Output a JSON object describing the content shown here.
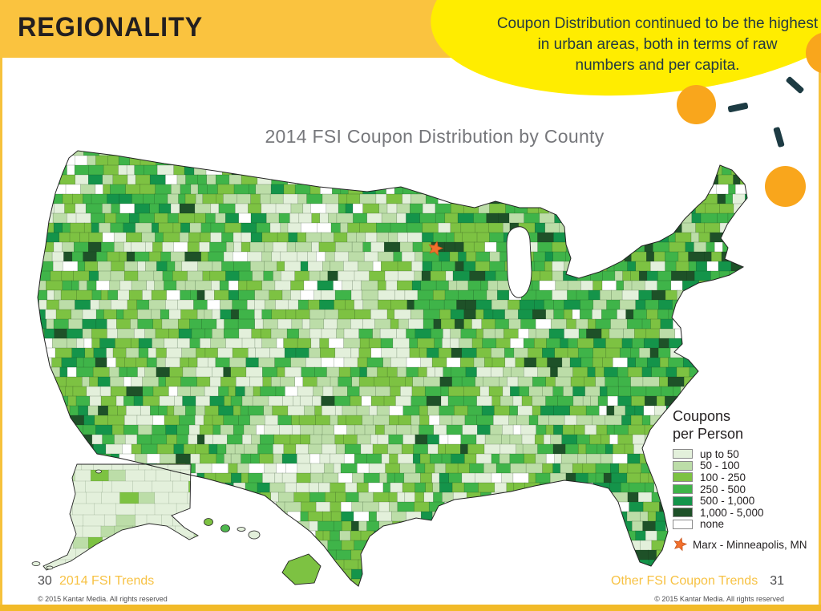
{
  "header": {
    "title": "REGIONALITY"
  },
  "callout": {
    "lines": [
      "Coupon Distribution continued to be the highest",
      "in urban areas, both in terms of raw",
      "numbers and per capita."
    ]
  },
  "map": {
    "title": "2014 FSI Coupon Distribution by County"
  },
  "map_data": {
    "type": "choropleth",
    "region": "United States counties (with Alaska and Hawaii insets)",
    "metric": "Coupons per Person",
    "classes": [
      "up to 50",
      "50 - 100",
      "100 - 250",
      "250 - 500",
      "500 - 1,000",
      "1,000 - 5,000",
      "none"
    ],
    "marker": {
      "name": "Marx",
      "location": "Minneapolis, MN"
    }
  },
  "legend": {
    "title_lines": [
      "Coupons",
      "per Person"
    ],
    "items": [
      {
        "label": "up to 50",
        "color": "#E3F0DB"
      },
      {
        "label": "50 - 100",
        "color": "#BCDDA8"
      },
      {
        "label": "100 - 250",
        "color": "#7DC242"
      },
      {
        "label": "250 - 500",
        "color": "#3FB449"
      },
      {
        "label": "500 - 1,000",
        "color": "#14944A"
      },
      {
        "label": "1,000 - 5,000",
        "color": "#1E5128"
      },
      {
        "label": "none",
        "color": "#FFFFFF"
      }
    ],
    "marker_label": "Marx - Minneapolis, MN"
  },
  "marker": {
    "fill": "#F2702C",
    "stroke": "#C8551D"
  },
  "footer": {
    "left_page": "30",
    "left_link": "2014 FSI Trends",
    "right_link": "Other FSI Coupon Trends",
    "right_page": "31",
    "copyright": "© 2015 Kantar Media. All rights reserved"
  },
  "colors": {
    "header_band": "#FAC33F",
    "bubble": "#FFED00",
    "accent_circle": "#F9A61C",
    "dash": "#1D3B43",
    "map_title": "#76777B",
    "footer_link": "#F7C244"
  }
}
